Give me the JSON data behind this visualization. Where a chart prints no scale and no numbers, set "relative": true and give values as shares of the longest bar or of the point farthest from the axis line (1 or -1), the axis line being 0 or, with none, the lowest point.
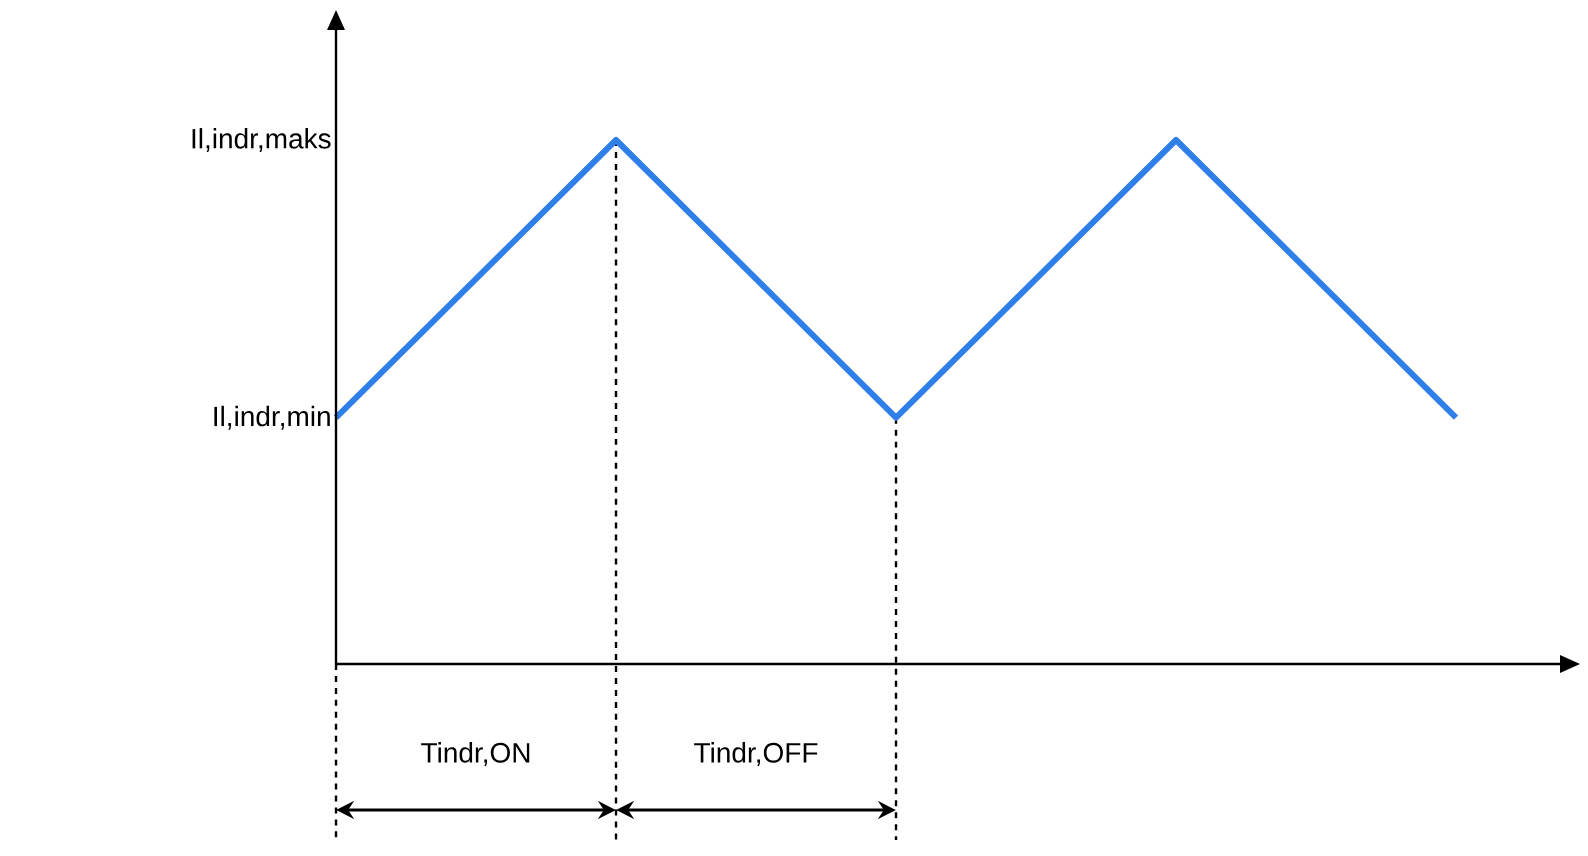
{
  "chart_data": {
    "type": "line",
    "relative": true,
    "marker": "none",
    "line_style": "solid",
    "categories": [
      null,
      null,
      null,
      null,
      null
    ],
    "series": [
      {
        "color": "#2f7fe8",
        "values": [
          0.47,
          1,
          0.47,
          1,
          0.47
        ]
      }
    ],
    "annotations": [
      "Il,indr,maks",
      "Il,indr,min",
      "Tindr,ON",
      "Tindr,OFF"
    ]
  }
}
